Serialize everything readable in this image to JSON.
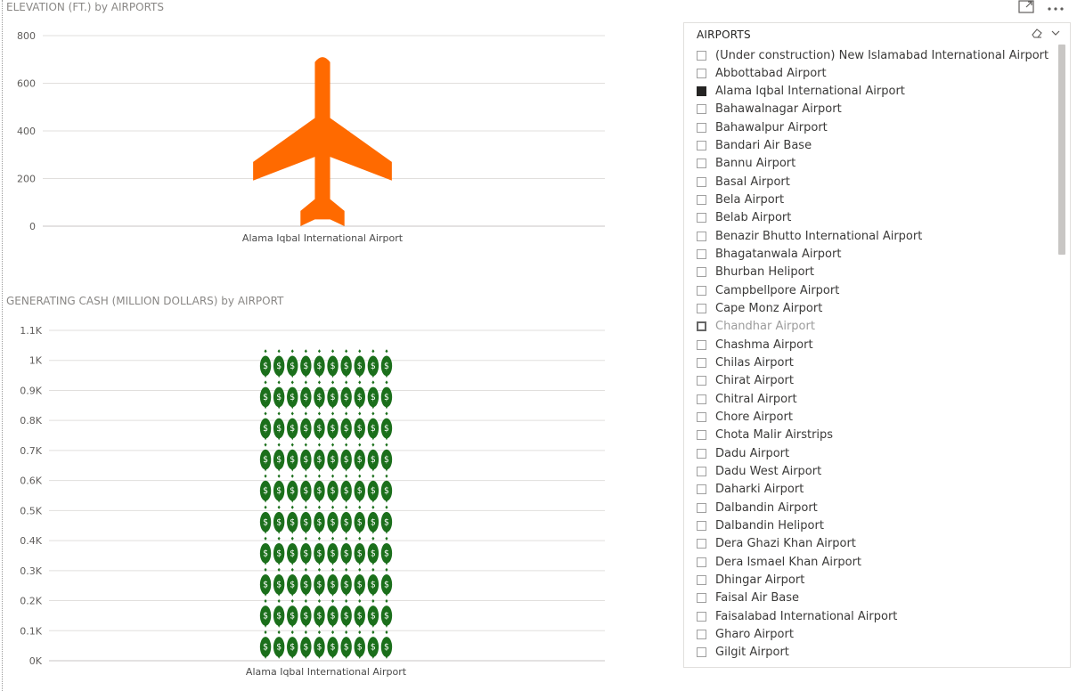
{
  "elevation_chart": {
    "title": "ELEVATION (FT.) by AIRPORTS"
  },
  "cash_chart": {
    "title": "GENERATING CASH (MILLION DOLLARS) by AIRPORT"
  },
  "chart_data": [
    {
      "type": "bar",
      "title": "ELEVATION (FT.) by AIRPORTS",
      "categories": [
        "Alama Iqbal International Airport"
      ],
      "values": [
        710
      ],
      "y_ticks": [
        "0",
        "200",
        "400",
        "600",
        "800"
      ],
      "ylim": [
        0,
        800
      ],
      "grid": true,
      "icon": "airplane-icon",
      "color": "#FF6A00"
    },
    {
      "type": "bar",
      "title": "GENERATING CASH (MILLION DOLLARS) by AIRPORT",
      "categories": [
        "Alama Iqbal International Airport"
      ],
      "values": [
        1040
      ],
      "y_ticks": [
        "0K",
        "0.1K",
        "0.2K",
        "0.3K",
        "0.4K",
        "0.5K",
        "0.6K",
        "0.7K",
        "0.8K",
        "0.9K",
        "1K",
        "1.1K"
      ],
      "ylim": [
        0,
        1100
      ],
      "grid": true,
      "icon": "money-bag-icon",
      "color": "#1B6F1B"
    }
  ],
  "toolbar": {
    "focus_icon": "focus-mode-icon",
    "more_icon": "more-options-icon"
  },
  "slicer": {
    "title": "AIRPORTS",
    "eraser_icon": "eraser-icon",
    "chevron_icon": "chevron-down-icon",
    "items": [
      {
        "label": "(Under construction) New Islamabad International Airport",
        "state": "unchecked"
      },
      {
        "label": "Abbottabad Airport",
        "state": "unchecked"
      },
      {
        "label": "Alama Iqbal International Airport",
        "state": "checked"
      },
      {
        "label": "Bahawalnagar Airport",
        "state": "unchecked"
      },
      {
        "label": "Bahawalpur Airport",
        "state": "unchecked"
      },
      {
        "label": "Bandari Air Base",
        "state": "unchecked"
      },
      {
        "label": "Bannu Airport",
        "state": "unchecked"
      },
      {
        "label": "Basal Airport",
        "state": "unchecked"
      },
      {
        "label": "Bela Airport",
        "state": "unchecked"
      },
      {
        "label": "Belab Airport",
        "state": "unchecked"
      },
      {
        "label": "Benazir Bhutto International Airport",
        "state": "unchecked"
      },
      {
        "label": "Bhagatanwala Airport",
        "state": "unchecked"
      },
      {
        "label": "Bhurban Heliport",
        "state": "unchecked"
      },
      {
        "label": "Campbellpore Airport",
        "state": "unchecked"
      },
      {
        "label": "Cape Monz Airport",
        "state": "unchecked"
      },
      {
        "label": "Chandhar Airport",
        "state": "hover"
      },
      {
        "label": "Chashma Airport",
        "state": "unchecked"
      },
      {
        "label": "Chilas Airport",
        "state": "unchecked"
      },
      {
        "label": "Chirat Airport",
        "state": "unchecked"
      },
      {
        "label": "Chitral Airport",
        "state": "unchecked"
      },
      {
        "label": "Chore Airport",
        "state": "unchecked"
      },
      {
        "label": "Chota Malir Airstrips",
        "state": "unchecked"
      },
      {
        "label": "Dadu Airport",
        "state": "unchecked"
      },
      {
        "label": "Dadu West Airport",
        "state": "unchecked"
      },
      {
        "label": "Daharki Airport",
        "state": "unchecked"
      },
      {
        "label": "Dalbandin Airport",
        "state": "unchecked"
      },
      {
        "label": "Dalbandin Heliport",
        "state": "unchecked"
      },
      {
        "label": "Dera Ghazi Khan Airport",
        "state": "unchecked"
      },
      {
        "label": "Dera Ismael Khan Airport",
        "state": "unchecked"
      },
      {
        "label": "Dhingar Airport",
        "state": "unchecked"
      },
      {
        "label": "Faisal Air Base",
        "state": "unchecked"
      },
      {
        "label": "Faisalabad International Airport",
        "state": "unchecked"
      },
      {
        "label": "Gharo Airport",
        "state": "unchecked"
      },
      {
        "label": "Gilgit Airport",
        "state": "unchecked"
      }
    ]
  }
}
